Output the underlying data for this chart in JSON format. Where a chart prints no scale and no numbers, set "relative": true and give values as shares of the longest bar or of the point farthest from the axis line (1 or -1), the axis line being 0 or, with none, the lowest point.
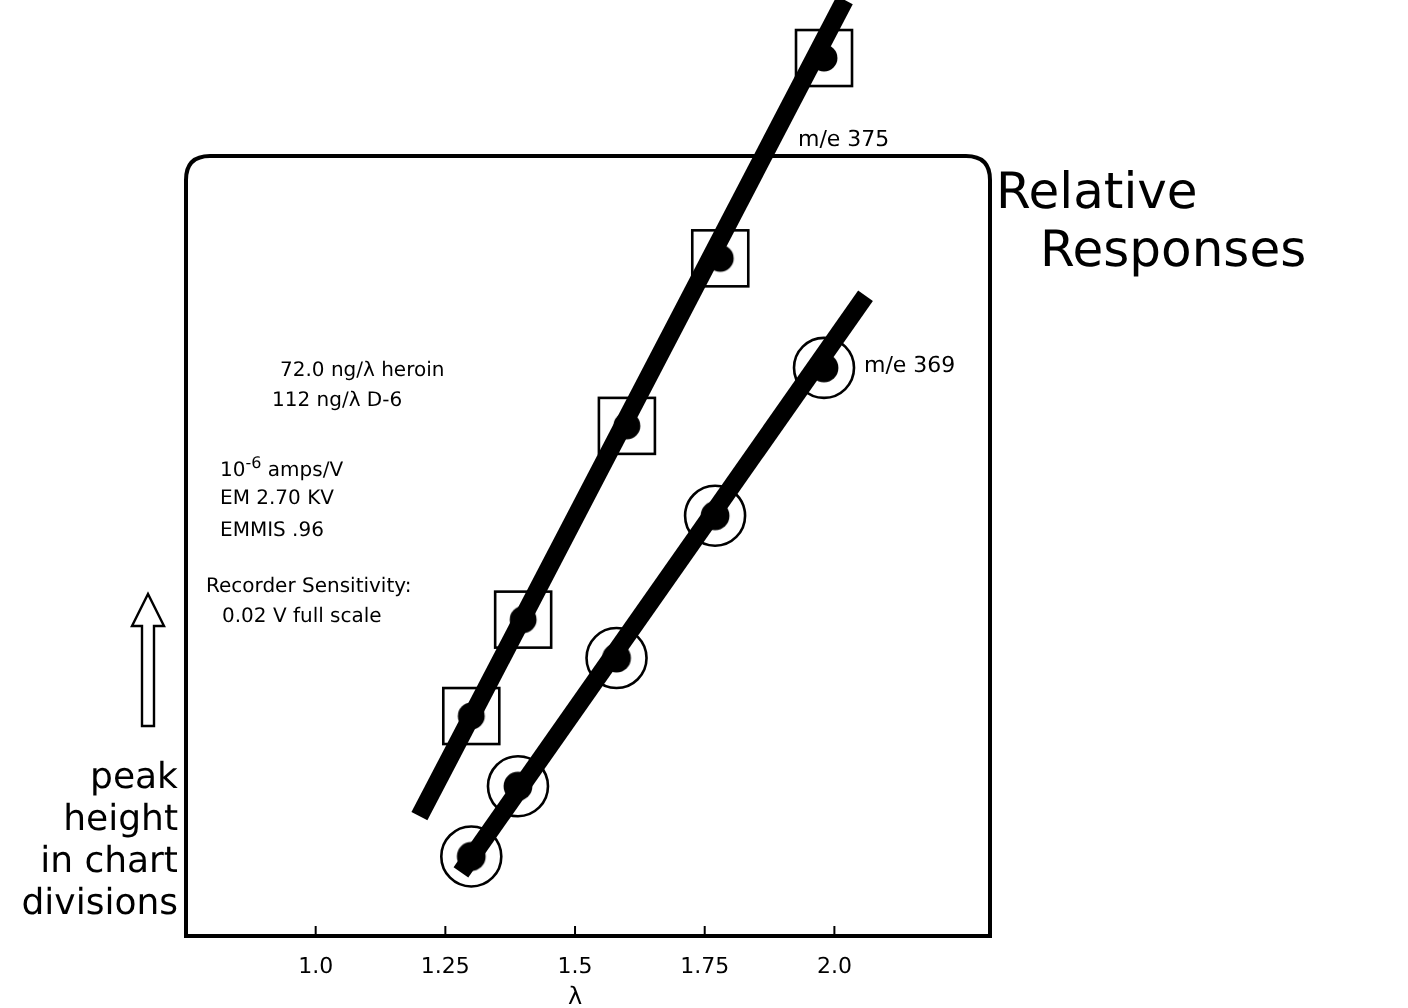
{
  "chart_data": {
    "type": "scatter",
    "title": "Relative Responses",
    "xlabel": "λ",
    "ylabel": "peak height in chart divisions",
    "relative": true,
    "xlim": [
      0.75,
      2.3
    ],
    "xticks": [
      {
        "value": 1,
        "label": "1.0"
      },
      1.25,
      1.5,
      1.75,
      {
        "value": 2,
        "label": "2.0"
      }
    ],
    "tick_labels": "x",
    "grid": false,
    "legend": false,
    "series": [
      {
        "name": "m/e 375",
        "color": "#000000",
        "marker": "square",
        "x": [
          1.3,
          1.4,
          1.6,
          1.78,
          1.98
        ],
        "values": [
          0.235,
          0.338,
          0.545,
          0.724,
          0.938
        ]
      },
      {
        "name": "m/e 369",
        "color": "#000000",
        "marker": "circle",
        "x": [
          1.3,
          1.39,
          1.58,
          1.77,
          1.98
        ],
        "values": [
          0.085,
          0.16,
          0.297,
          0.449,
          0.607
        ]
      },
      {
        "type": "line",
        "color": "#000000",
        "x": [
          1.2,
          2.02
        ],
        "values": [
          0.128,
          1
        ]
      },
      {
        "type": "line",
        "color": "#000000",
        "x": [
          1.28,
          2.06
        ],
        "values": [
          0.068,
          0.684
        ]
      }
    ],
    "annotations": [
      "72.0 ng/λ heroin",
      "112 ng/λ D-6",
      "10$^{-6}$ amps/V",
      "EM 2.70 KV",
      "EMMIS .96",
      "Recorder Sensitivity:",
      "0.02 V full scale"
    ]
  }
}
